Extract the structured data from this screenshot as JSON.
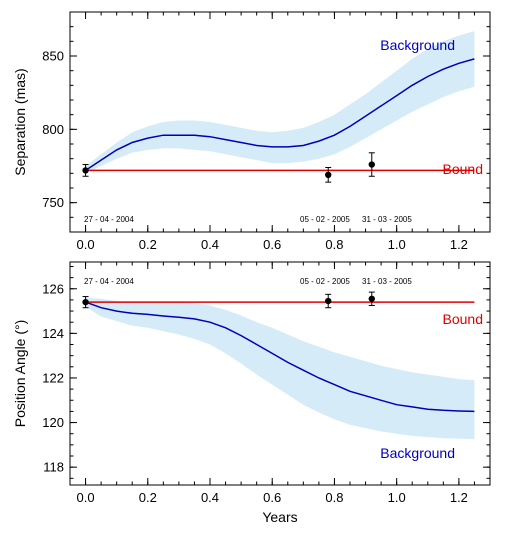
{
  "chart_data": [
    {
      "type": "line",
      "title": "",
      "xlabel": "",
      "ylabel": "Separation (mas)",
      "xlim": [
        -0.05,
        1.3
      ],
      "ylim": [
        730,
        880
      ],
      "x_ticks": [
        0.0,
        0.2,
        0.4,
        0.6,
        0.8,
        1.0,
        1.2
      ],
      "x_tick_labels": [
        "0.0",
        "0.2",
        "0.4",
        "0.6",
        "0.8",
        "1.0",
        "1.2"
      ],
      "y_ticks": [
        750,
        800,
        850
      ],
      "y_tick_labels": [
        "750",
        "800",
        "850"
      ],
      "series": [
        {
          "name": "Background",
          "color": "#0000bb",
          "band_color": "#d6ebf8",
          "x": [
            0.0,
            0.05,
            0.1,
            0.15,
            0.2,
            0.25,
            0.3,
            0.35,
            0.4,
            0.45,
            0.5,
            0.55,
            0.6,
            0.65,
            0.7,
            0.75,
            0.8,
            0.85,
            0.9,
            0.95,
            1.0,
            1.05,
            1.1,
            1.15,
            1.2,
            1.25
          ],
          "values": [
            772,
            779,
            786,
            791,
            794,
            796,
            796,
            796,
            795,
            793,
            791,
            789,
            788,
            788,
            789,
            792,
            796,
            802,
            809,
            816,
            823,
            830,
            836,
            841,
            845,
            848
          ],
          "lower": [
            770,
            775,
            780,
            784,
            786,
            787,
            787,
            786,
            785,
            783,
            781,
            779,
            777,
            777,
            778,
            780,
            783,
            788,
            794,
            800,
            806,
            812,
            817,
            822,
            826,
            829
          ],
          "upper": [
            775,
            783,
            791,
            798,
            802,
            805,
            806,
            806,
            805,
            803,
            801,
            799,
            798,
            799,
            801,
            805,
            810,
            817,
            824,
            832,
            840,
            848,
            855,
            860,
            864,
            867
          ]
        },
        {
          "name": "Bound",
          "color": "#e00000",
          "x": [
            0.0,
            1.25
          ],
          "values": [
            772,
            772
          ]
        }
      ],
      "observations": {
        "x": [
          0.0,
          0.78,
          0.92
        ],
        "values": [
          772,
          769,
          776
        ],
        "errors": [
          4,
          5,
          8
        ]
      },
      "date_labels": [
        "27 - 04 - 2004",
        "05 - 02 - 2005",
        "31 - 03 - 2005"
      ]
    },
    {
      "type": "line",
      "title": "",
      "xlabel": "Years",
      "ylabel": "Position Angle (°)",
      "xlim": [
        -0.05,
        1.3
      ],
      "ylim": [
        117.2,
        127.2
      ],
      "x_ticks": [
        0.0,
        0.2,
        0.4,
        0.6,
        0.8,
        1.0,
        1.2
      ],
      "x_tick_labels": [
        "0.0",
        "0.2",
        "0.4",
        "0.6",
        "0.8",
        "1.0",
        "1.2"
      ],
      "y_ticks": [
        118,
        120,
        122,
        124,
        126
      ],
      "y_tick_labels": [
        "118",
        "120",
        "122",
        "124",
        "126"
      ],
      "series": [
        {
          "name": "Background",
          "color": "#0000bb",
          "band_color": "#d6ebf8",
          "x": [
            0.0,
            0.05,
            0.1,
            0.15,
            0.2,
            0.25,
            0.3,
            0.35,
            0.4,
            0.45,
            0.5,
            0.55,
            0.6,
            0.65,
            0.7,
            0.75,
            0.8,
            0.85,
            0.9,
            0.95,
            1.0,
            1.05,
            1.1,
            1.15,
            1.2,
            1.25
          ],
          "values": [
            125.4,
            125.15,
            125.0,
            124.9,
            124.85,
            124.78,
            124.72,
            124.65,
            124.5,
            124.25,
            123.9,
            123.5,
            123.1,
            122.7,
            122.35,
            122.0,
            121.7,
            121.4,
            121.2,
            121.0,
            120.8,
            120.7,
            120.6,
            120.55,
            120.52,
            120.5
          ],
          "lower": [
            125.2,
            124.75,
            124.55,
            124.35,
            124.25,
            124.1,
            123.95,
            123.75,
            123.5,
            123.1,
            122.65,
            122.15,
            121.7,
            121.25,
            120.8,
            120.45,
            120.15,
            119.9,
            119.75,
            119.6,
            119.5,
            119.4,
            119.35,
            119.3,
            119.28,
            119.25
          ],
          "upper": [
            125.6,
            125.55,
            125.45,
            125.4,
            125.4,
            125.4,
            125.4,
            125.35,
            125.25,
            125.05,
            124.8,
            124.5,
            124.25,
            123.95,
            123.65,
            123.4,
            123.15,
            122.95,
            122.75,
            122.55,
            122.4,
            122.25,
            122.15,
            122.05,
            121.95,
            121.9
          ]
        },
        {
          "name": "Bound",
          "color": "#e00000",
          "x": [
            0.0,
            1.25
          ],
          "values": [
            125.4,
            125.4
          ]
        }
      ],
      "observations": {
        "x": [
          0.0,
          0.78,
          0.92
        ],
        "values": [
          125.4,
          125.45,
          125.55
        ],
        "errors": [
          0.25,
          0.3,
          0.3
        ]
      },
      "date_labels": [
        "27 - 04 - 2004",
        "05 - 02 - 2005",
        "31 - 03 - 2005"
      ]
    }
  ]
}
